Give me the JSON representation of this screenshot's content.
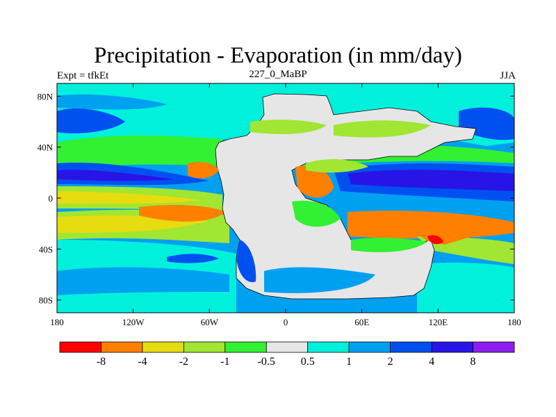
{
  "title": "Precipitation - Evaporation (in mm/day)",
  "left_string": "Expt = tfkEt",
  "center_string": "227_0_MaBP",
  "right_string": "JJA",
  "lon_ticks": [
    {
      "value": -180,
      "label": "180"
    },
    {
      "value": -120,
      "label": "120W"
    },
    {
      "value": -60,
      "label": "60W"
    },
    {
      "value": 0,
      "label": "0"
    },
    {
      "value": 60,
      "label": "60E"
    },
    {
      "value": 120,
      "label": "120E"
    },
    {
      "value": 180,
      "label": "180"
    }
  ],
  "lat_ticks": [
    {
      "value": 80,
      "label": "80N"
    },
    {
      "value": 40,
      "label": "40N"
    },
    {
      "value": 0,
      "label": "0"
    },
    {
      "value": -40,
      "label": "40S"
    },
    {
      "value": -80,
      "label": "80S"
    }
  ],
  "colorbar": {
    "colors": [
      "#ff0000",
      "#ff8000",
      "#e6dc10",
      "#a0e632",
      "#32f032",
      "#e6e6e6",
      "#00f0dc",
      "#00a0f0",
      "#0050f0",
      "#2814e6",
      "#8c1ef0"
    ],
    "labels": [
      "-8",
      "-4",
      "-2",
      "-1",
      "-0.5",
      "0.5",
      "1",
      "2",
      "4",
      "8"
    ]
  }
}
